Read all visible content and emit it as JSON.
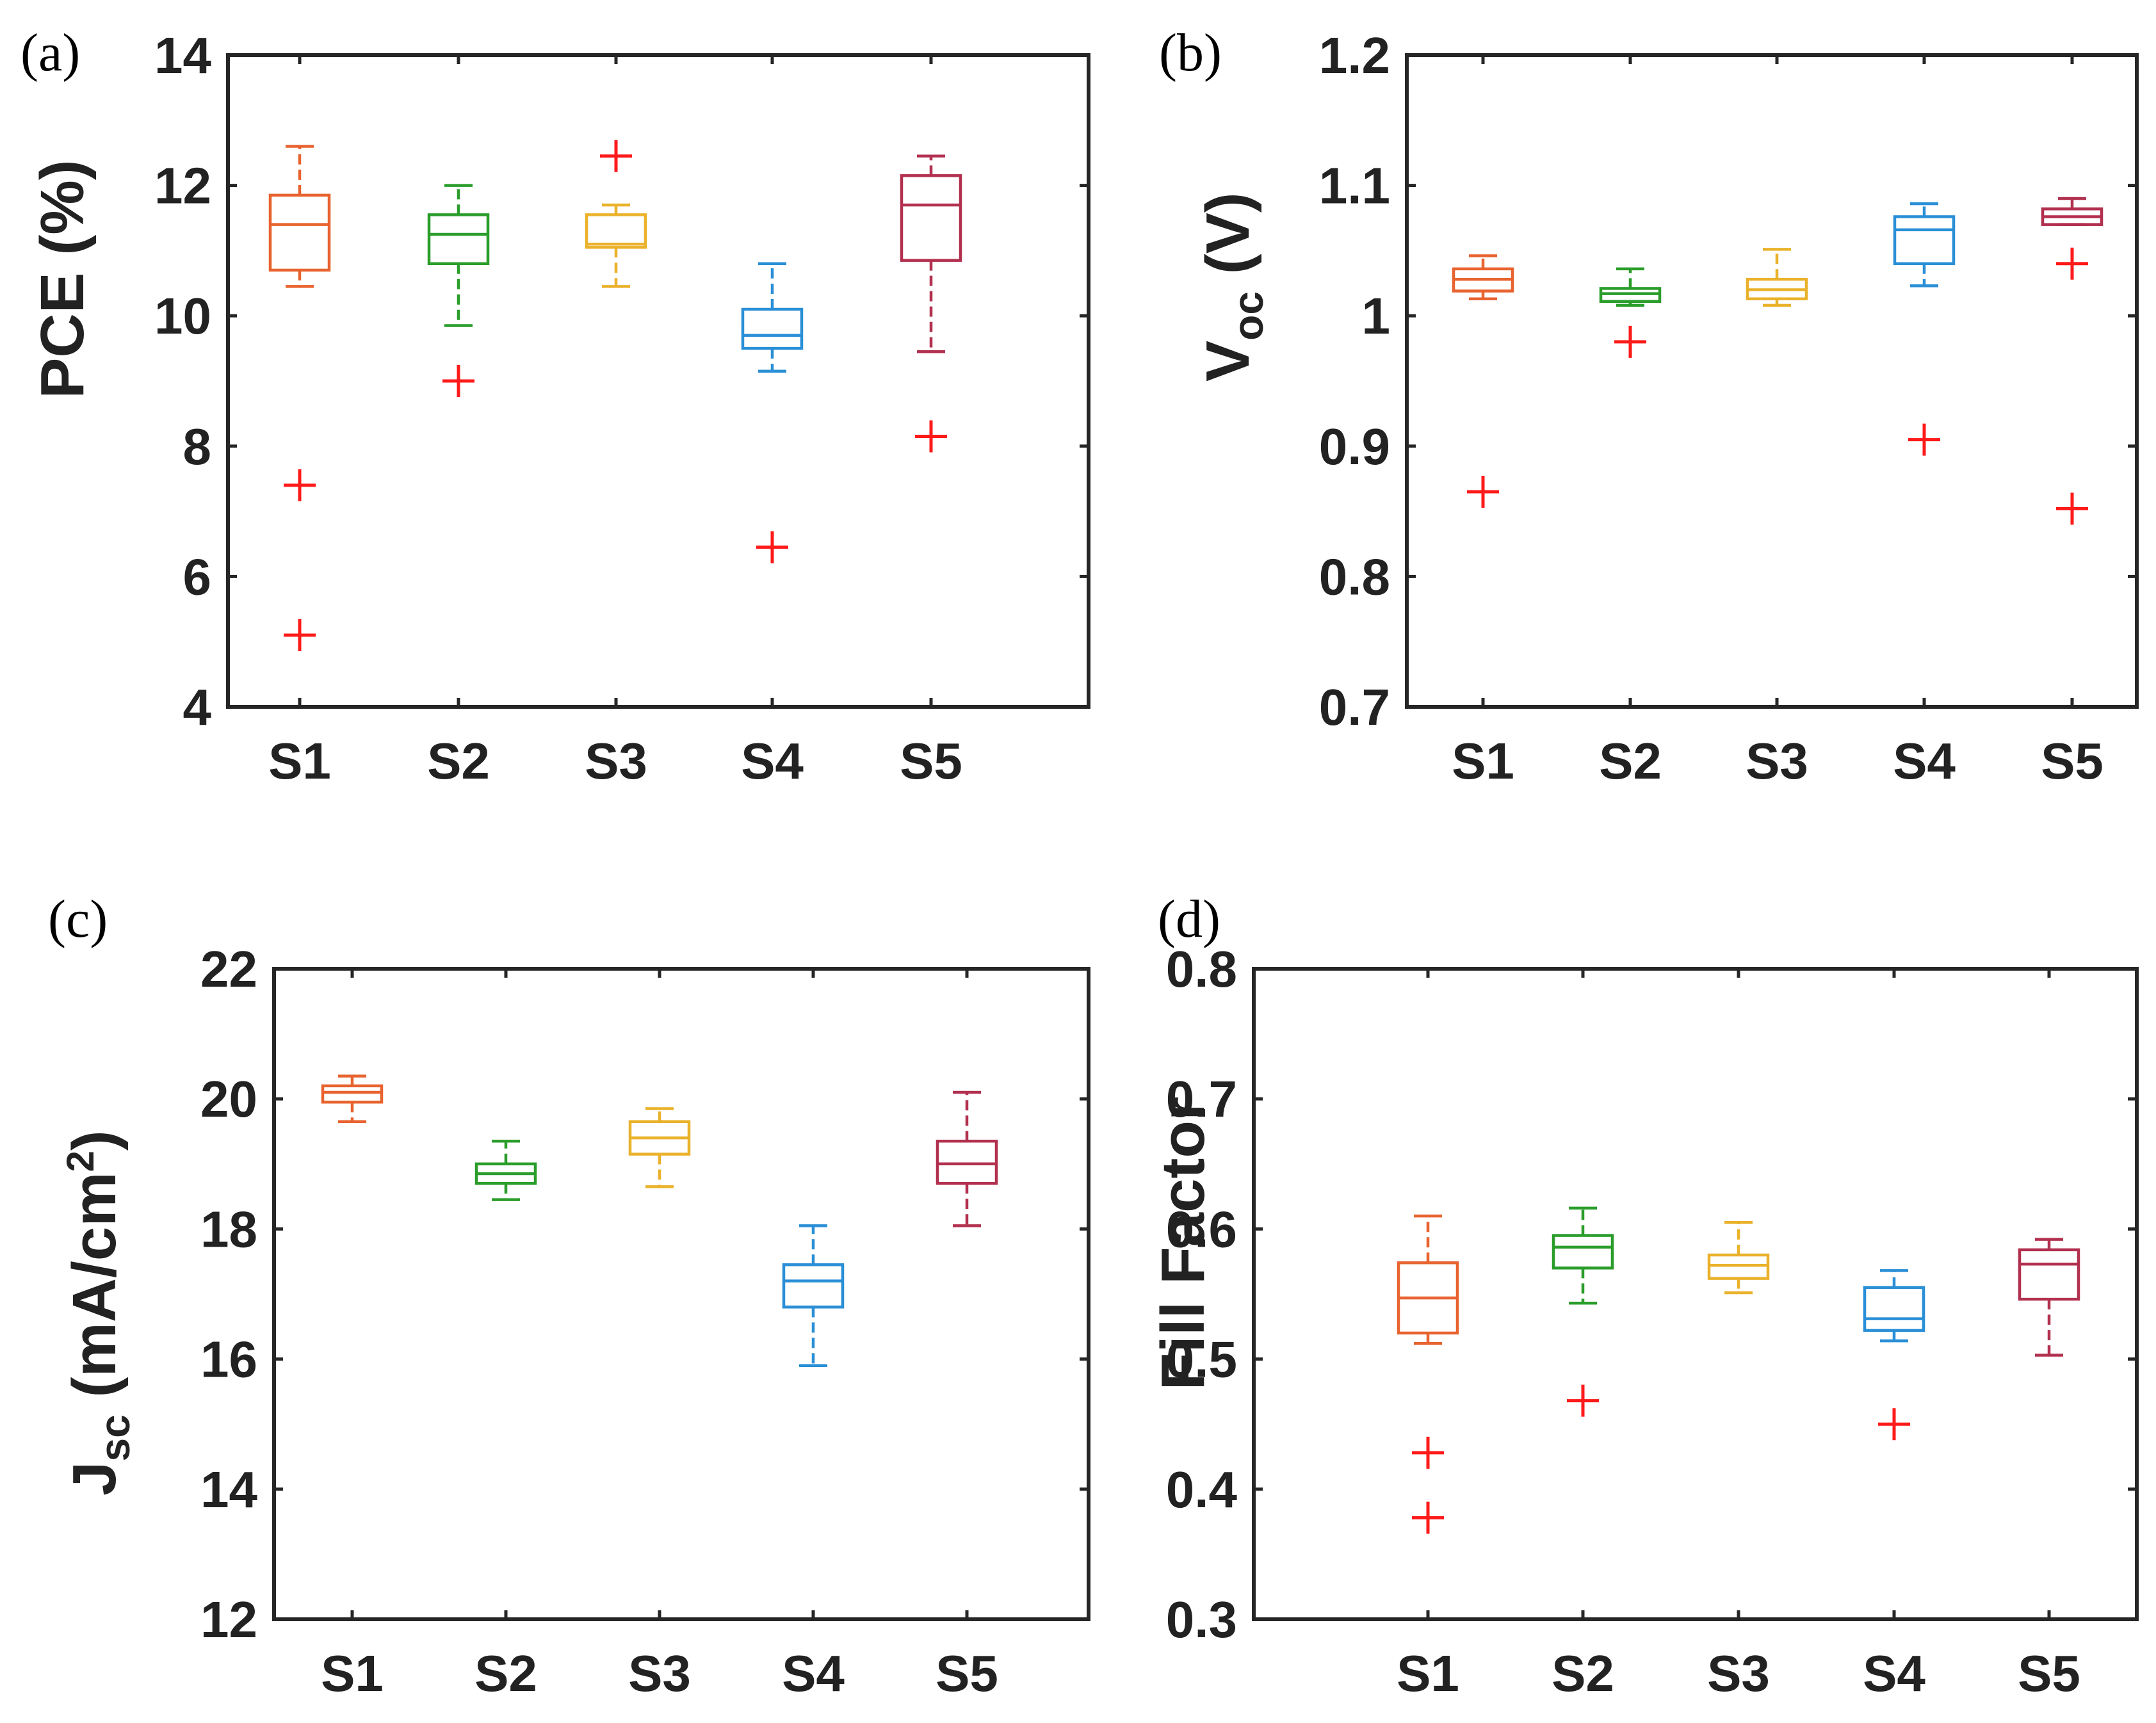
{
  "chart_data": [
    {
      "panel": "(a)",
      "type": "box",
      "ylabel": "PCE (%)",
      "categories": [
        "S1",
        "S2",
        "S3",
        "S4",
        "S5"
      ],
      "ylim": [
        4,
        14
      ],
      "yticks": [
        4,
        6,
        8,
        10,
        12,
        14
      ],
      "ytick_labels": [
        "4",
        "6",
        "8",
        "10",
        "12",
        "14"
      ],
      "boxes": [
        {
          "category": "S1",
          "color": "#e8632f",
          "whisker_low": 10.45,
          "q1": 10.7,
          "median": 11.4,
          "q3": 11.85,
          "whisker_high": 12.6,
          "outliers": [
            7.4,
            5.1
          ]
        },
        {
          "category": "S2",
          "color": "#2a9d2a",
          "whisker_low": 9.85,
          "q1": 10.8,
          "median": 11.25,
          "q3": 11.55,
          "whisker_high": 12.0,
          "outliers": [
            9.0
          ]
        },
        {
          "category": "S3",
          "color": "#eab22b",
          "whisker_low": 10.45,
          "q1": 11.05,
          "median": 11.1,
          "q3": 11.55,
          "whisker_high": 11.7,
          "outliers": [
            12.45
          ]
        },
        {
          "category": "S4",
          "color": "#2a8fd6",
          "whisker_low": 9.15,
          "q1": 9.5,
          "median": 9.7,
          "q3": 10.1,
          "whisker_high": 10.8,
          "outliers": [
            6.45
          ]
        },
        {
          "category": "S5",
          "color": "#b2304f",
          "whisker_low": 9.45,
          "q1": 10.85,
          "median": 11.7,
          "q3": 12.15,
          "whisker_high": 12.45,
          "outliers": [
            8.15
          ]
        }
      ]
    },
    {
      "panel": "(b)",
      "type": "box",
      "ylabel": "V",
      "ylabel_sub": "oc",
      "ylabel_tail": " (V)",
      "categories": [
        "S1",
        "S2",
        "S3",
        "S4",
        "S5"
      ],
      "ylim": [
        0.7,
        1.2
      ],
      "yticks": [
        0.7,
        0.8,
        0.9,
        1.0,
        1.1,
        1.2
      ],
      "ytick_labels": [
        "0.7",
        "0.8",
        "0.9",
        "1",
        "1.1",
        "1.2"
      ],
      "boxes": [
        {
          "category": "S1",
          "color": "#e8632f",
          "whisker_low": 1.013,
          "q1": 1.019,
          "median": 1.028,
          "q3": 1.036,
          "whisker_high": 1.046,
          "outliers": [
            0.865
          ]
        },
        {
          "category": "S2",
          "color": "#2a9d2a",
          "whisker_low": 1.008,
          "q1": 1.011,
          "median": 1.017,
          "q3": 1.021,
          "whisker_high": 1.036,
          "outliers": [
            0.98
          ]
        },
        {
          "category": "S3",
          "color": "#eab22b",
          "whisker_low": 1.008,
          "q1": 1.013,
          "median": 1.02,
          "q3": 1.028,
          "whisker_high": 1.051,
          "outliers": []
        },
        {
          "category": "S4",
          "color": "#2a8fd6",
          "whisker_low": 1.023,
          "q1": 1.04,
          "median": 1.066,
          "q3": 1.076,
          "whisker_high": 1.086,
          "outliers": [
            0.905
          ]
        },
        {
          "category": "S5",
          "color": "#b2304f",
          "whisker_low": 1.07,
          "q1": 1.07,
          "median": 1.076,
          "q3": 1.082,
          "whisker_high": 1.09,
          "outliers": [
            1.04,
            0.852
          ]
        }
      ]
    },
    {
      "panel": "(c)",
      "type": "box",
      "ylabel": "J",
      "ylabel_sub": "sc",
      "ylabel_tail": " (mA/cm",
      "ylabel_sup": "2",
      "ylabel_end": ")",
      "categories": [
        "S1",
        "S2",
        "S3",
        "S4",
        "S5"
      ],
      "ylim": [
        12,
        22
      ],
      "yticks": [
        12,
        14,
        16,
        18,
        20,
        22
      ],
      "ytick_labels": [
        "12",
        "14",
        "16",
        "18",
        "20",
        "22"
      ],
      "boxes": [
        {
          "category": "S1",
          "color": "#e8632f",
          "whisker_low": 19.65,
          "q1": 19.95,
          "median": 20.1,
          "q3": 20.2,
          "whisker_high": 20.35,
          "outliers": []
        },
        {
          "category": "S2",
          "color": "#2a9d2a",
          "whisker_low": 18.45,
          "q1": 18.7,
          "median": 18.85,
          "q3": 19.0,
          "whisker_high": 19.35,
          "outliers": []
        },
        {
          "category": "S3",
          "color": "#eab22b",
          "whisker_low": 18.65,
          "q1": 19.15,
          "median": 19.4,
          "q3": 19.65,
          "whisker_high": 19.85,
          "outliers": []
        },
        {
          "category": "S4",
          "color": "#2a8fd6",
          "whisker_low": 15.9,
          "q1": 16.8,
          "median": 17.2,
          "q3": 17.45,
          "whisker_high": 18.05,
          "outliers": []
        },
        {
          "category": "S5",
          "color": "#b2304f",
          "whisker_low": 18.05,
          "q1": 18.7,
          "median": 19.0,
          "q3": 19.35,
          "whisker_high": 20.1,
          "outliers": []
        }
      ]
    },
    {
      "panel": "(d)",
      "type": "box",
      "ylabel": "Fill Factor",
      "categories": [
        "S1",
        "S2",
        "S3",
        "S4",
        "S5"
      ],
      "ylim": [
        0.3,
        0.8
      ],
      "yticks": [
        0.3,
        0.4,
        0.5,
        0.6,
        0.7,
        0.8
      ],
      "ytick_labels": [
        "0.3",
        "0.4",
        "0.5",
        "0.6",
        "0.7",
        "0.8"
      ],
      "boxes": [
        {
          "category": "S1",
          "color": "#e8632f",
          "whisker_low": 0.512,
          "q1": 0.52,
          "median": 0.547,
          "q3": 0.574,
          "whisker_high": 0.61,
          "outliers": [
            0.428,
            0.378
          ]
        },
        {
          "category": "S2",
          "color": "#2a9d2a",
          "whisker_low": 0.543,
          "q1": 0.57,
          "median": 0.586,
          "q3": 0.595,
          "whisker_high": 0.616,
          "outliers": [
            0.468
          ]
        },
        {
          "category": "S3",
          "color": "#eab22b",
          "whisker_low": 0.551,
          "q1": 0.562,
          "median": 0.572,
          "q3": 0.58,
          "whisker_high": 0.605,
          "outliers": []
        },
        {
          "category": "S4",
          "color": "#2a8fd6",
          "whisker_low": 0.514,
          "q1": 0.522,
          "median": 0.531,
          "q3": 0.555,
          "whisker_high": 0.568,
          "outliers": [
            0.45
          ]
        },
        {
          "category": "S5",
          "color": "#b2304f",
          "whisker_low": 0.503,
          "q1": 0.546,
          "median": 0.573,
          "q3": 0.584,
          "whisker_high": 0.592,
          "outliers": []
        }
      ]
    }
  ]
}
